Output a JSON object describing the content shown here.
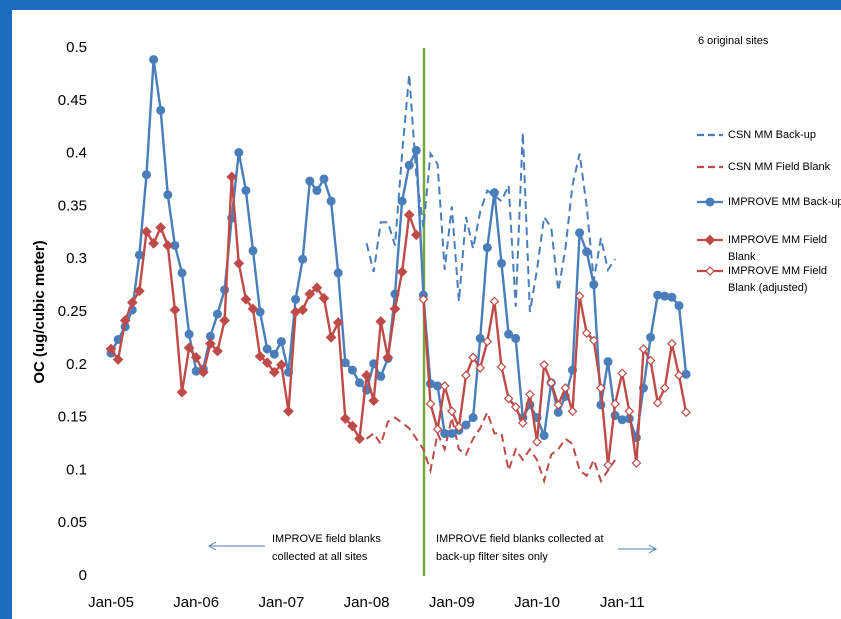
{
  "chart_data": {
    "type": "line",
    "y_label": "OC  (ug/cubic meter)",
    "annotations": [
      "6 original sites",
      "IMPROVE field blanks collected at all sites",
      "IMPROVE field blanks collected at back-up filter sites only"
    ],
    "categories": [
      "Jan-05",
      null,
      null,
      null,
      null,
      null,
      null,
      null,
      null,
      null,
      null,
      null,
      "Jan-06",
      null,
      null,
      null,
      null,
      null,
      null,
      null,
      null,
      null,
      null,
      null,
      "Jan-07",
      null,
      null,
      null,
      null,
      null,
      null,
      null,
      null,
      null,
      null,
      null,
      "Jan-08",
      null,
      null,
      null,
      null,
      null,
      null,
      null,
      null,
      null,
      null,
      null,
      "Jan-09",
      null,
      null,
      null,
      null,
      null,
      null,
      null,
      null,
      null,
      null,
      null,
      "Jan-10",
      null,
      null,
      null,
      null,
      null,
      null,
      null,
      null,
      null,
      null,
      null,
      "Jan-11",
      null,
      null,
      null,
      null,
      null,
      null,
      null,
      null,
      null
    ],
    "ylim": [
      0,
      0.5
    ],
    "yticks": [
      0,
      0.05,
      0.1,
      0.15,
      0.2,
      0.25,
      0.3,
      0.35,
      0.4,
      0.45,
      0.5
    ],
    "grid": false,
    "legend": "right",
    "series": [
      {
        "name": "CSN MM Back-up",
        "color": "#4a7ebb",
        "dash": true,
        "marker": null,
        "values": [
          null,
          null,
          null,
          null,
          null,
          null,
          null,
          null,
          null,
          null,
          null,
          null,
          null,
          null,
          null,
          null,
          null,
          null,
          null,
          null,
          null,
          null,
          null,
          null,
          null,
          null,
          null,
          null,
          null,
          null,
          null,
          null,
          null,
          null,
          null,
          null,
          0.315,
          0.288,
          0.335,
          0.335,
          0.313,
          0.4,
          0.475,
          0.38,
          0.33,
          0.4,
          0.39,
          0.29,
          0.35,
          0.26,
          0.34,
          0.31,
          0.345,
          0.365,
          0.36,
          0.355,
          0.37,
          0.255,
          0.42,
          0.25,
          0.29,
          0.34,
          0.33,
          0.27,
          0.31,
          0.37,
          0.4,
          0.35,
          0.28,
          0.32,
          0.29,
          0.3,
          null,
          null,
          null,
          null,
          null,
          null,
          null,
          null,
          null,
          null
        ]
      },
      {
        "name": "CSN MM Field Blank",
        "color": "#be4b48",
        "dash": true,
        "marker": null,
        "values": [
          null,
          null,
          null,
          null,
          null,
          null,
          null,
          null,
          null,
          null,
          null,
          null,
          null,
          null,
          null,
          null,
          null,
          null,
          null,
          null,
          null,
          null,
          null,
          null,
          null,
          null,
          null,
          null,
          null,
          null,
          null,
          null,
          null,
          null,
          null,
          null,
          0.13,
          0.135,
          0.125,
          0.146,
          0.15,
          0.145,
          0.14,
          0.13,
          0.12,
          0.1,
          0.135,
          0.12,
          0.15,
          0.12,
          0.115,
          0.13,
          0.14,
          0.155,
          0.135,
          0.135,
          0.1,
          0.12,
          0.11,
          0.12,
          0.11,
          0.09,
          0.115,
          0.12,
          0.13,
          0.125,
          0.1,
          0.095,
          0.11,
          0.09,
          0.1,
          0.11,
          null,
          null,
          null,
          null,
          null,
          null,
          null,
          null,
          null,
          null
        ]
      },
      {
        "name": "IMPROVE MM Back-up",
        "color": "#4a7ebb",
        "dash": false,
        "marker": "circle",
        "values": [
          0.211,
          0.224,
          0.236,
          0.252,
          0.304,
          0.38,
          0.489,
          0.441,
          0.361,
          0.313,
          0.287,
          0.229,
          0.194,
          0.196,
          0.227,
          0.248,
          0.271,
          0.339,
          0.401,
          0.365,
          0.308,
          0.25,
          0.215,
          0.21,
          0.222,
          0.193,
          0.262,
          0.3,
          0.374,
          0.365,
          0.376,
          0.355,
          0.287,
          0.202,
          0.195,
          0.183,
          0.176,
          0.201,
          0.189,
          0.206,
          0.267,
          0.355,
          0.389,
          0.403,
          0.266,
          0.182,
          0.18,
          0.135,
          0.135,
          0.138,
          0.143,
          0.15,
          0.225,
          0.311,
          0.363,
          0.296,
          0.229,
          0.225,
          0.15,
          0.162,
          0.15,
          0.133,
          0.183,
          0.155,
          0.17,
          0.195,
          0.325,
          0.307,
          0.276,
          0.162,
          0.203,
          0.152,
          0.148,
          0.149,
          0.131,
          0.178,
          0.226,
          0.266,
          0.265,
          0.264,
          0.256,
          0.191
        ]
      },
      {
        "name": "IMPROVE MM Field Blank",
        "color": "#be4b48",
        "dash": false,
        "marker": "diamond",
        "values": [
          0.215,
          0.205,
          0.242,
          0.259,
          0.27,
          0.326,
          0.315,
          0.33,
          0.313,
          0.252,
          0.174,
          0.216,
          0.207,
          0.193,
          0.22,
          0.213,
          0.242,
          0.378,
          0.296,
          0.262,
          0.253,
          0.208,
          0.202,
          0.193,
          0.2,
          0.156,
          0.25,
          0.252,
          0.267,
          0.273,
          0.263,
          0.226,
          0.24,
          0.149,
          0.142,
          0.13,
          0.19,
          0.166,
          0.241,
          0.207,
          0.253,
          0.288,
          0.342,
          0.323,
          null,
          null,
          null,
          null,
          null,
          null,
          null,
          null,
          null,
          null,
          null,
          null,
          null,
          null,
          null,
          null,
          null,
          null,
          null,
          null,
          null,
          null,
          null,
          null,
          null,
          null,
          null,
          null,
          null,
          null,
          null,
          null,
          null,
          null,
          null,
          null,
          null,
          null
        ]
      },
      {
        "name": "IMPROVE MM Field Blank (adjusted)",
        "color": "#be4b48",
        "dash": false,
        "marker": "diamond-open",
        "values": [
          null,
          null,
          null,
          null,
          null,
          null,
          null,
          null,
          null,
          null,
          null,
          null,
          null,
          null,
          null,
          null,
          null,
          null,
          null,
          null,
          null,
          null,
          null,
          null,
          null,
          null,
          null,
          null,
          null,
          null,
          null,
          null,
          null,
          null,
          null,
          null,
          null,
          null,
          null,
          null,
          null,
          null,
          null,
          null,
          0.262,
          0.163,
          0.139,
          0.18,
          0.156,
          0.141,
          0.19,
          0.207,
          0.197,
          0.222,
          0.26,
          0.198,
          0.168,
          0.16,
          0.145,
          0.172,
          0.127,
          0.2,
          0.183,
          0.162,
          0.178,
          0.156,
          0.265,
          0.23,
          0.223,
          0.178,
          0.105,
          0.163,
          0.192,
          0.156,
          0.107,
          0.215,
          0.204,
          0.164,
          0.178,
          0.22,
          0.19,
          0.155
        ]
      }
    ]
  }
}
